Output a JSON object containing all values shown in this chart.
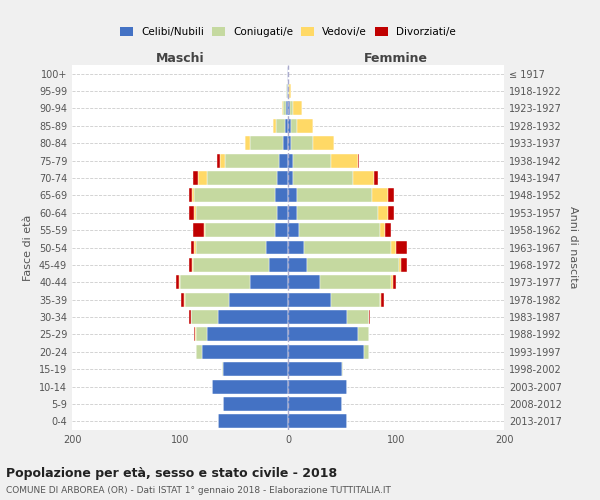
{
  "age_groups": [
    "0-4",
    "5-9",
    "10-14",
    "15-19",
    "20-24",
    "25-29",
    "30-34",
    "35-39",
    "40-44",
    "45-49",
    "50-54",
    "55-59",
    "60-64",
    "65-69",
    "70-74",
    "75-79",
    "80-84",
    "85-89",
    "90-94",
    "95-99",
    "100+"
  ],
  "birth_years": [
    "2013-2017",
    "2008-2012",
    "2003-2007",
    "1998-2002",
    "1993-1997",
    "1988-1992",
    "1983-1987",
    "1978-1982",
    "1973-1977",
    "1968-1972",
    "1963-1967",
    "1958-1962",
    "1953-1957",
    "1948-1952",
    "1943-1947",
    "1938-1942",
    "1933-1937",
    "1928-1932",
    "1923-1927",
    "1918-1922",
    "≤ 1917"
  ],
  "maschi": {
    "celibi": [
      65,
      60,
      70,
      60,
      80,
      75,
      65,
      55,
      35,
      18,
      20,
      12,
      10,
      12,
      10,
      8,
      5,
      3,
      2,
      1,
      1
    ],
    "coniugati": [
      0,
      0,
      0,
      1,
      5,
      10,
      25,
      40,
      65,
      70,
      65,
      65,
      75,
      75,
      65,
      50,
      30,
      8,
      3,
      1,
      0
    ],
    "vedovi": [
      0,
      0,
      0,
      0,
      0,
      1,
      0,
      1,
      1,
      1,
      2,
      1,
      2,
      2,
      8,
      5,
      5,
      3,
      1,
      0,
      0
    ],
    "divorziati": [
      0,
      0,
      0,
      0,
      0,
      1,
      2,
      3,
      3,
      3,
      3,
      10,
      5,
      3,
      5,
      3,
      0,
      0,
      0,
      0,
      0
    ]
  },
  "femmine": {
    "nubili": [
      55,
      50,
      55,
      50,
      70,
      65,
      55,
      40,
      30,
      18,
      15,
      10,
      8,
      8,
      5,
      5,
      3,
      3,
      2,
      0,
      0
    ],
    "coniugate": [
      0,
      0,
      0,
      1,
      5,
      10,
      20,
      45,
      65,
      85,
      80,
      75,
      75,
      70,
      55,
      35,
      20,
      5,
      3,
      1,
      0
    ],
    "vedove": [
      0,
      0,
      0,
      0,
      0,
      0,
      0,
      1,
      2,
      2,
      5,
      5,
      10,
      15,
      20,
      25,
      20,
      15,
      8,
      2,
      0
    ],
    "divorziate": [
      0,
      0,
      0,
      0,
      0,
      0,
      1,
      3,
      3,
      5,
      10,
      5,
      5,
      5,
      3,
      1,
      0,
      0,
      0,
      0,
      0
    ]
  },
  "colors": {
    "celibi_nubili": "#4472c4",
    "coniugati": "#c5d9a0",
    "vedovi": "#ffd966",
    "divorziati": "#c00000"
  },
  "xlim": 200,
  "title": "Popolazione per età, sesso e stato civile - 2018",
  "subtitle": "COMUNE DI ARBOREA (OR) - Dati ISTAT 1° gennaio 2018 - Elaborazione TUTTITALIA.IT",
  "ylabel": "Fasce di età",
  "ylabel_right": "Anni di nascita",
  "xlabel_maschi": "Maschi",
  "xlabel_femmine": "Femmine",
  "bg_color": "#f0f0f0",
  "plot_bg": "#ffffff"
}
